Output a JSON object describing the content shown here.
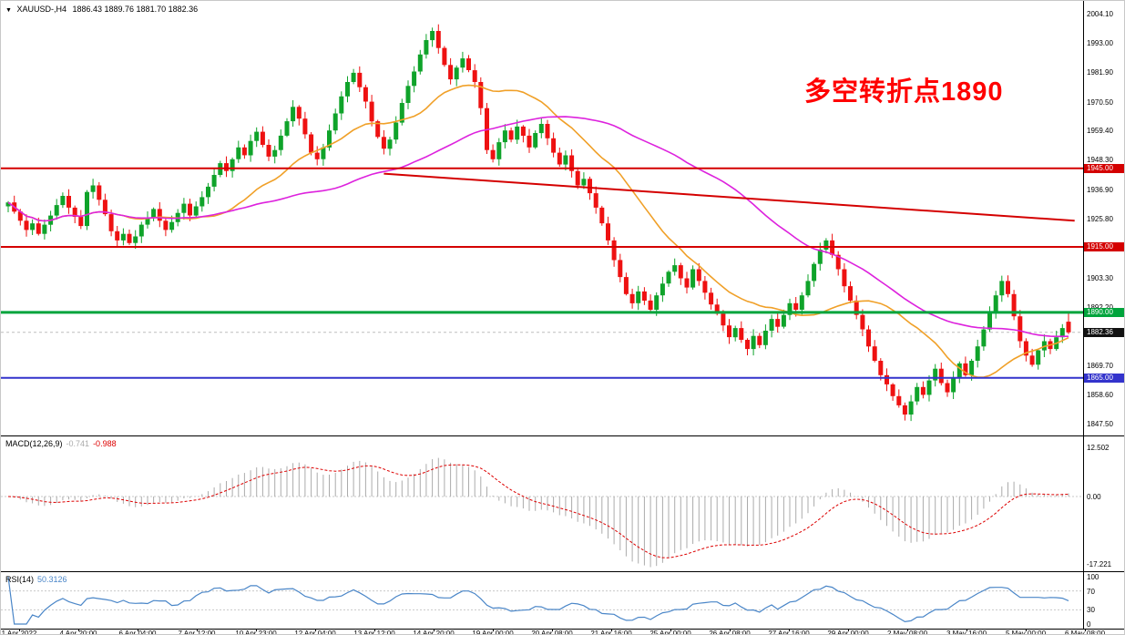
{
  "header": {
    "marker": "▼",
    "symbol_period": "XAUUSD-,H4",
    "ohlc": "1886.43 1889.76 1881.70 1882.36"
  },
  "annotation": {
    "text": "多空转折点1890",
    "color": "#ff0000"
  },
  "colors": {
    "up": "#0fa32a",
    "down": "#ee1111",
    "ma_fast": "#f0a028",
    "ma_slow": "#dd22dd",
    "current_line": "#bdbdbd",
    "current_tag_bg": "#111111",
    "macd_hist": "#ababab",
    "macd_signal": "#dd0000",
    "rsi_line": "#4a86c8",
    "level_line": "#c8c8c8"
  },
  "chart_data": {
    "type": "candlestick",
    "title": "XAUUSD- H4 with MACD and RSI",
    "x_labels": [
      "1 Apr 2022",
      "4 Apr 20:00",
      "6 Apr 04:00",
      "7 Apr 12:00",
      "10 Apr 23:00",
      "12 Apr 04:00",
      "13 Apr 12:00",
      "14 Apr 20:00",
      "19 Apr 00:00",
      "20 Apr 08:00",
      "21 Apr 16:00",
      "25 Apr 00:00",
      "26 Apr 08:00",
      "27 Apr 16:00",
      "29 Apr 00:00",
      "2 May 08:00",
      "3 May 16:00",
      "5 May 00:00",
      "6 May 08:00"
    ],
    "y_axis_labels": [
      2004.1,
      1993.0,
      1981.9,
      1970.5,
      1959.4,
      1948.3,
      1936.9,
      1925.8,
      1903.3,
      1892.2,
      1869.7,
      1858.6,
      1847.5
    ],
    "y_range": {
      "min": 1847.5,
      "max": 2004.1
    },
    "closes": [
      1932.0,
      1928.5,
      1925.0,
      1921.5,
      1924.0,
      1920.0,
      1923.5,
      1927.0,
      1931.0,
      1934.5,
      1930.0,
      1926.5,
      1923.0,
      1936.0,
      1938.5,
      1933.0,
      1927.5,
      1921.0,
      1917.5,
      1920.0,
      1916.5,
      1919.0,
      1923.5,
      1926.0,
      1929.5,
      1925.0,
      1921.5,
      1924.5,
      1928.0,
      1931.5,
      1927.0,
      1930.5,
      1934.0,
      1938.0,
      1942.5,
      1947.0,
      1944.0,
      1948.5,
      1953.0,
      1950.0,
      1955.5,
      1959.0,
      1954.0,
      1949.5,
      1952.0,
      1957.5,
      1963.0,
      1968.5,
      1964.0,
      1958.0,
      1951.0,
      1948.5,
      1953.0,
      1959.5,
      1966.0,
      1972.5,
      1978.0,
      1981.5,
      1976.0,
      1970.5,
      1963.0,
      1957.0,
      1952.5,
      1956.0,
      1962.5,
      1970.0,
      1976.5,
      1982.0,
      1988.5,
      1994.0,
      1997.5,
      1991.0,
      1984.5,
      1979.0,
      1983.5,
      1987.0,
      1982.5,
      1978.0,
      1968.0,
      1952.0,
      1948.5,
      1955.0,
      1959.5,
      1956.0,
      1961.0,
      1957.5,
      1953.0,
      1958.5,
      1962.0,
      1956.5,
      1951.0,
      1946.5,
      1950.0,
      1944.0,
      1938.5,
      1941.0,
      1935.5,
      1930.0,
      1924.0,
      1917.5,
      1910.0,
      1903.5,
      1897.0,
      1893.5,
      1898.0,
      1894.5,
      1891.0,
      1896.5,
      1901.0,
      1905.5,
      1908.0,
      1903.0,
      1899.5,
      1906.5,
      1902.0,
      1897.5,
      1893.0,
      1889.5,
      1885.0,
      1880.5,
      1884.0,
      1879.5,
      1876.0,
      1881.0,
      1877.5,
      1883.0,
      1887.5,
      1884.5,
      1889.0,
      1893.5,
      1891.0,
      1896.5,
      1902.0,
      1908.5,
      1914.0,
      1917.5,
      1912.0,
      1906.5,
      1900.0,
      1894.5,
      1889.0,
      1883.5,
      1877.0,
      1871.5,
      1866.0,
      1862.5,
      1858.0,
      1854.5,
      1851.0,
      1856.0,
      1861.5,
      1858.5,
      1864.0,
      1868.5,
      1863.0,
      1859.5,
      1865.0,
      1870.5,
      1866.0,
      1871.5,
      1877.0,
      1883.5,
      1890.0,
      1896.5,
      1902.0,
      1897.0,
      1888.5,
      1879.0,
      1873.5,
      1870.0,
      1875.5,
      1879.0,
      1876.0,
      1880.5,
      1884.0,
      1882.36
    ],
    "current_bar": {
      "open": 1886.43,
      "high": 1889.76,
      "low": 1881.7,
      "close": 1882.36
    },
    "horizontal_lines": [
      {
        "price": 1945.0,
        "label": "1945.00",
        "color": "#d40000",
        "thickness": 2
      },
      {
        "price": 1915.0,
        "label": "1915.00",
        "color": "#d40000",
        "thickness": 2
      },
      {
        "price": 1890.0,
        "label": "1890.00",
        "color": "#00a43c",
        "thickness": 3
      },
      {
        "price": 1865.0,
        "label": "1865.00",
        "color": "#3333cc",
        "thickness": 2
      }
    ],
    "current_price": {
      "price": 1882.36,
      "label": "1882.36"
    },
    "trendline": {
      "from_index": 62,
      "from_price": 1943.0,
      "to_index": 176,
      "to_price": 1925.0,
      "color": "#d40000",
      "thickness": 2
    },
    "moving_averages": [
      {
        "name": "fast-ma",
        "period": 20,
        "color": "#f0a028"
      },
      {
        "name": "slow-ma",
        "period": 55,
        "color": "#dd22dd"
      }
    ],
    "macd": {
      "name": "MACD(12,26,9)",
      "value_main": "-0.741",
      "value_signal": "-0.988",
      "fast": 12,
      "slow": 26,
      "signal": 9,
      "scale_max": 12.502,
      "scale_min": -17.221,
      "scale_labels": [
        "12.502",
        "0.00",
        "-17.221"
      ]
    },
    "rsi": {
      "name": "RSI(14)",
      "value": "50.3126",
      "period": 14,
      "levels": [
        70,
        30
      ],
      "scale_values": [
        100,
        70,
        30,
        0
      ],
      "scale_labels": [
        "100",
        "70",
        "30",
        "0"
      ]
    }
  }
}
